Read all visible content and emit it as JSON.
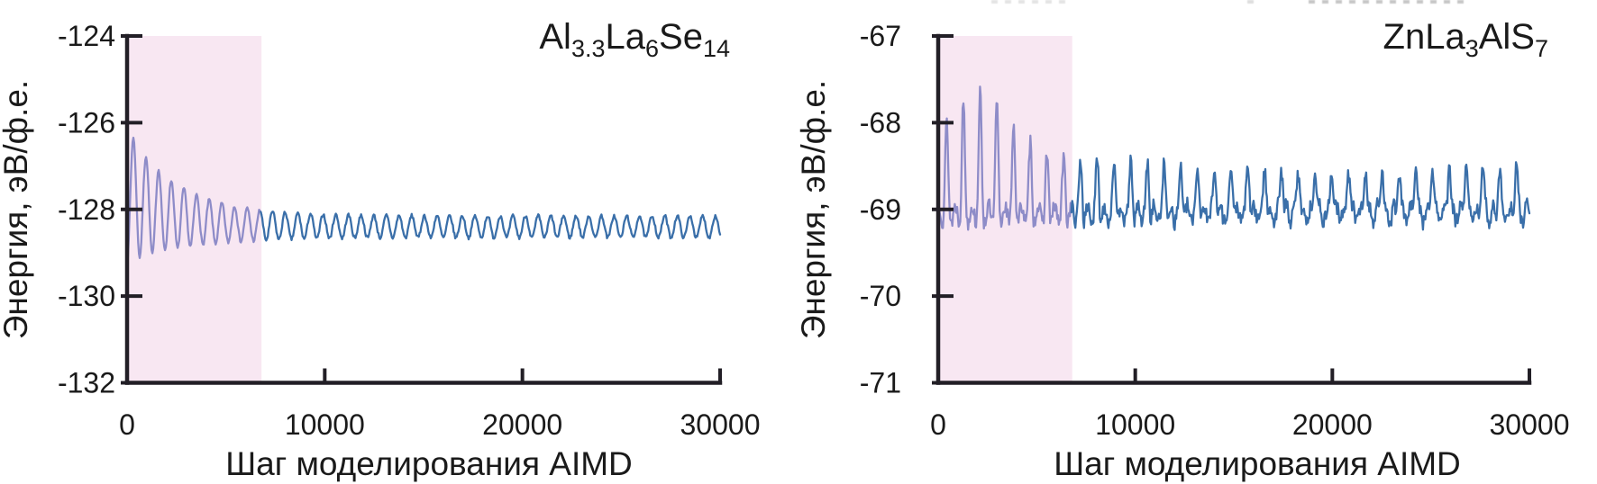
{
  "figure": {
    "description_xlabel": "Шаг моделирования AIMD",
    "description_ylabel": "Энергия, эВ/ф.е."
  },
  "chart_data": [
    {
      "type": "line",
      "title_plain": "Al3.3La6Se14",
      "title_segments": [
        {
          "t": "Al"
        },
        {
          "s": "3.3"
        },
        {
          "t": "La"
        },
        {
          "s": "6"
        },
        {
          "t": "Se"
        },
        {
          "s": "14"
        }
      ],
      "xlabel": "Шаг моделирования AIMD",
      "ylabel": "Энергия, эВ/ф.е.",
      "xlim": [
        0,
        30000
      ],
      "ylim": [
        -132,
        -124
      ],
      "xticks": [
        0,
        10000,
        20000,
        30000
      ],
      "yticks": [
        -124,
        -126,
        -128,
        -130,
        -132
      ],
      "grid": false,
      "legend": false,
      "equilibration_region": {
        "start_step": 0,
        "end_step": 6800
      },
      "series": {
        "name": "energy-vs-step",
        "model": "damped_oscillation",
        "seed": 7,
        "dt": 40,
        "t_max": 30000,
        "params": {
          "mean_base": -128.4,
          "base_amp": 0.75,
          "base_tau": 2200,
          "osc_amp_inf": 0.25,
          "osc_amp0": 1.3,
          "osc_tau": 2600,
          "period": 640,
          "phase": -1.5708,
          "noise": 0.04
        },
        "readings": {
          "initial_energy": -129.2,
          "highest_peak_energy": -126.4,
          "lowest_trough_energy": -129.3,
          "equilibrium_mean_energy": -128.4,
          "equilibrium_band": [
            -128.7,
            -128.1
          ],
          "oscillation_period_steps": 640
        }
      },
      "colors": {
        "equilibration_line": "#8e8cc8",
        "production_line": "#3a6fa9",
        "region_fill": "#f8e7f2",
        "axis": "#221f26",
        "text": "#1a1a1a"
      }
    },
    {
      "type": "line",
      "title_plain": "ZnLa3AlS7",
      "title_segments": [
        {
          "t": "ZnLa"
        },
        {
          "s": "3"
        },
        {
          "t": "AlS"
        },
        {
          "s": "7"
        }
      ],
      "xlabel": "Шаг моделирования AIMD",
      "ylabel": "Энергия, эВ/ф.е.",
      "xlim": [
        0,
        30000
      ],
      "ylim": [
        -71,
        -67
      ],
      "xticks": [
        0,
        10000,
        20000,
        30000
      ],
      "yticks": [
        -67,
        -68,
        -69,
        -70,
        -71
      ],
      "grid": false,
      "legend": false,
      "equilibration_region": {
        "start_step": 0,
        "end_step": 6800
      },
      "series": {
        "name": "energy-vs-step",
        "model": "decaying_spikes",
        "seed": 13,
        "dt": 40,
        "t_max": 30000,
        "params": {
          "baseline": -69.05,
          "amp_inf": 0.55,
          "amp_bump": 0.75,
          "bump_center": 2100,
          "bump_width": 2200,
          "spike_period": 850,
          "spike_phase": -1.5708,
          "spike_sharpness": 3,
          "wiggle_amp": 0.1,
          "wiggle_period": 420,
          "noise": 0.09
        },
        "readings": {
          "baseline_energy": -69.05,
          "highest_spike_energy": -67.7,
          "highest_spike_step": 2100,
          "equilibrium_band": [
            -69.2,
            -68.5
          ],
          "spike_period_steps": 850
        }
      },
      "colors": {
        "equilibration_line": "#8e8cc8",
        "production_line": "#3a6fa9",
        "region_fill": "#f8e7f2",
        "axis": "#221f26",
        "text": "#1a1a1a"
      }
    }
  ]
}
